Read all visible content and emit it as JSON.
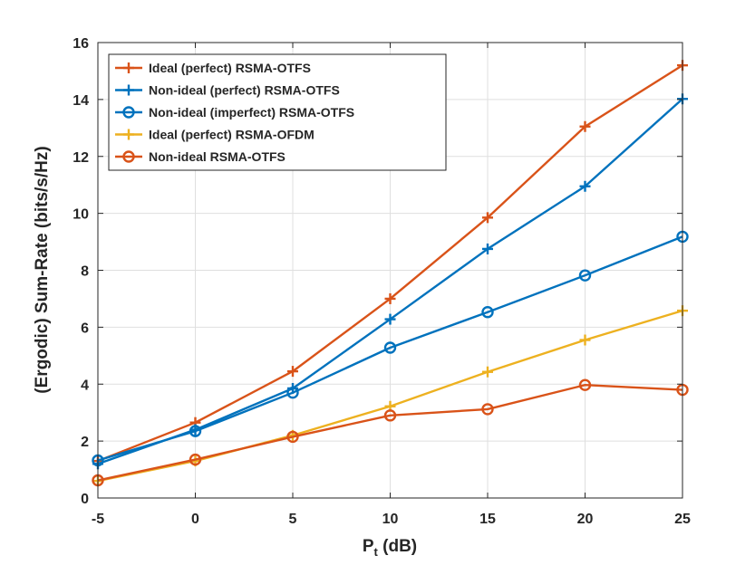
{
  "chart_data": {
    "type": "line",
    "xlabel_main": "P",
    "xlabel_sub": "t",
    "xlabel_rest": " (dB)",
    "ylabel": "(Ergodic) Sum-Rate (bits/s/Hz)",
    "x": [
      -5,
      0,
      5,
      10,
      15,
      20,
      25
    ],
    "xlim": [
      -5,
      25
    ],
    "ylim": [
      0,
      16
    ],
    "xticks": [
      -5,
      0,
      5,
      10,
      15,
      20,
      25
    ],
    "yticks": [
      0,
      2,
      4,
      6,
      8,
      10,
      12,
      14,
      16
    ],
    "grid": true,
    "legend_position": "top-left",
    "series": [
      {
        "name": "Ideal (perfect) RSMA-OTFS",
        "color": "#D95319",
        "marker": "plus",
        "values": [
          1.3,
          2.65,
          4.45,
          7.0,
          9.85,
          13.05,
          15.2
        ]
      },
      {
        "name": "Non-ideal (perfect) RSMA-OTFS",
        "color": "#0072BD",
        "marker": "plus",
        "values": [
          1.2,
          2.4,
          3.85,
          6.28,
          8.75,
          10.95,
          14.02
        ]
      },
      {
        "name": "Non-ideal (imperfect) RSMA-OTFS",
        "color": "#0072BD",
        "marker": "circle",
        "values": [
          1.32,
          2.35,
          3.7,
          5.28,
          6.53,
          7.82,
          9.18
        ]
      },
      {
        "name": "Ideal (perfect) RSMA-OFDM",
        "color": "#EDB120",
        "marker": "plus",
        "values": [
          0.6,
          1.3,
          2.2,
          3.22,
          4.43,
          5.55,
          6.58
        ]
      },
      {
        "name": "Non-ideal RSMA-OTFS",
        "color": "#D95319",
        "marker": "circle",
        "values": [
          0.62,
          1.35,
          2.15,
          2.9,
          3.12,
          3.97,
          3.8
        ]
      }
    ]
  }
}
